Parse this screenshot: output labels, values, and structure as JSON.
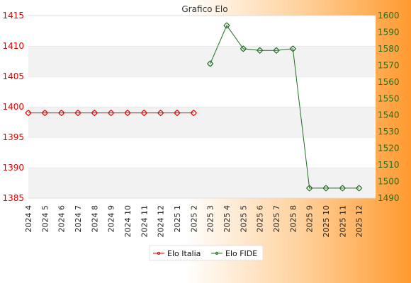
{
  "chart_data": {
    "type": "line",
    "title": "Grafico Elo",
    "categories": [
      "2024 4",
      "2024 5",
      "2024 6",
      "2024 7",
      "2024 8",
      "2024 9",
      "2024 10",
      "2024 11",
      "2024 12",
      "2025 1",
      "2025 2",
      "2025 3",
      "2025 4",
      "2025 5",
      "2025 6",
      "2025 7",
      "2025 8",
      "2025 9",
      "2025 10",
      "2025 11",
      "2025 12"
    ],
    "series": [
      {
        "name": "Elo Italia",
        "axis": "left",
        "color": "#e00000",
        "values": [
          1399,
          1399,
          1399,
          1399,
          1399,
          1399,
          1399,
          1399,
          1399,
          1399,
          1399,
          null,
          null,
          null,
          null,
          null,
          null,
          null,
          null,
          null,
          null
        ]
      },
      {
        "name": "Elo FIDE",
        "axis": "right",
        "color": "#207020",
        "values": [
          null,
          null,
          null,
          null,
          null,
          null,
          null,
          null,
          null,
          null,
          null,
          1571,
          1594,
          1580,
          1579,
          1579,
          1580,
          1496,
          1496,
          1496,
          1496
        ]
      }
    ],
    "y_left": {
      "min": 1385,
      "max": 1415,
      "ticks": [
        1385,
        1390,
        1395,
        1400,
        1405,
        1410,
        1415
      ],
      "color": "#e00000"
    },
    "y_right": {
      "min": 1490,
      "max": 1600,
      "ticks": [
        1490,
        1500,
        1510,
        1520,
        1530,
        1540,
        1550,
        1560,
        1570,
        1580,
        1590,
        1600
      ],
      "color": "#207020"
    },
    "grid": true,
    "legend": "bottom-center"
  }
}
